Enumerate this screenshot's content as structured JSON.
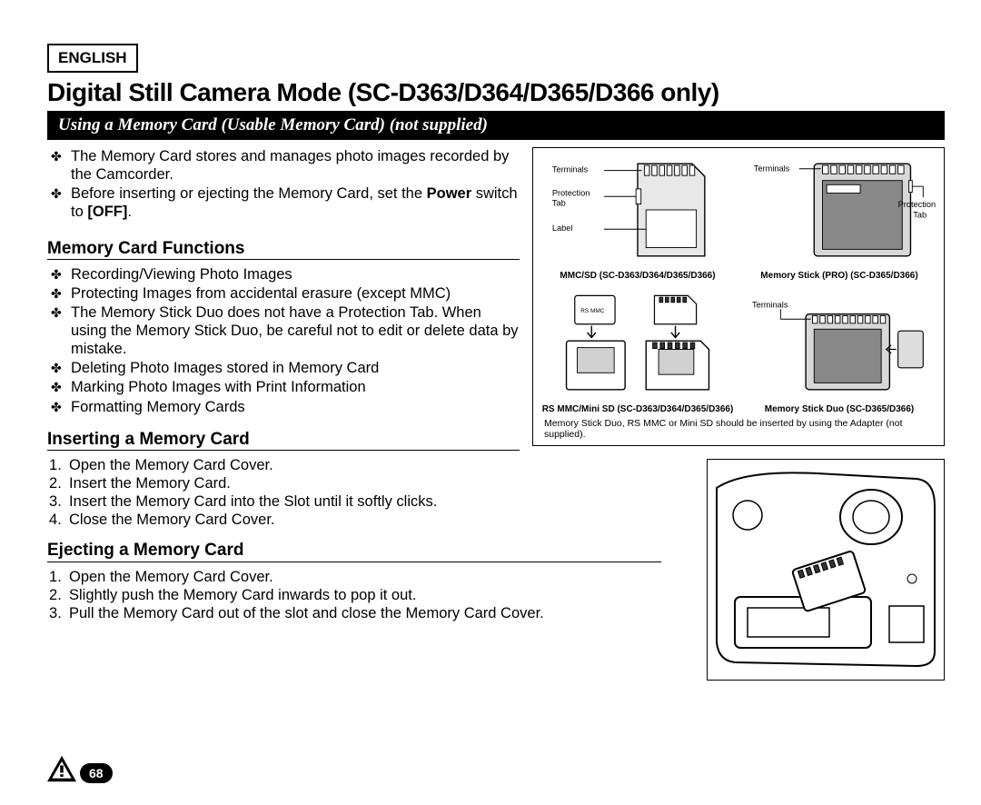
{
  "language_label": "ENGLISH",
  "page_title": "Digital Still Camera Mode (SC-D363/D364/D365/D366 only)",
  "section_bar": "Using a Memory Card (Usable Memory Card) (not supplied)",
  "intro_bullets": [
    "The Memory Card stores and manages photo images recorded by the Camcorder.",
    "Before inserting or ejecting the Memory Card, set the <b>Power</b> switch to <b>[OFF]</b>."
  ],
  "functions_heading": "Memory Card Functions",
  "functions_bullets": [
    "Recording/Viewing Photo Images",
    "Protecting Images from accidental erasure (except MMC)",
    "The Memory Stick Duo does not have a Protection Tab. When using the Memory Stick Duo, be careful not to edit or delete data by mistake.",
    "Deleting Photo Images stored in Memory Card",
    "Marking Photo Images with Print Information",
    "Formatting Memory Cards"
  ],
  "insert_heading": "Inserting a Memory Card",
  "insert_steps": [
    "Open the Memory Card Cover.",
    "Insert the Memory Card.",
    "Insert the Memory Card into the Slot until it softly clicks.",
    "Close the Memory Card Cover."
  ],
  "eject_heading": "Ejecting a Memory Card",
  "eject_steps": [
    "Open the Memory Card Cover.",
    "Slightly push the Memory Card inwards to pop it out.",
    "Pull the Memory Card out of the slot and close the Memory Card Cover."
  ],
  "diagram": {
    "top_left": {
      "labels": {
        "terminals": "Terminals",
        "protection": "Protection Tab",
        "label": "Label"
      },
      "caption": "MMC/SD (SC-D363/D364/D365/D366)"
    },
    "top_right": {
      "labels": {
        "terminals": "Terminals",
        "protection": "Protection Tab"
      },
      "caption": "Memory Stick (PRO) (SC-D365/D366)"
    },
    "bottom_left": {
      "label_rsmmc": "RS MMC",
      "caption": "RS MMC/Mini SD (SC-D363/D364/D365/D366)"
    },
    "bottom_right": {
      "labels": {
        "terminals": "Terminals"
      },
      "caption": "Memory Stick Duo (SC-D365/D366)"
    },
    "note": "Memory Stick Duo, RS MMC or Mini SD should be inserted by using the Adapter (not supplied)."
  },
  "page_number": "68",
  "colors": {
    "text": "#000000",
    "bar_bg": "#000000",
    "bar_fg": "#ffffff",
    "page_bg": "#ffffff"
  }
}
